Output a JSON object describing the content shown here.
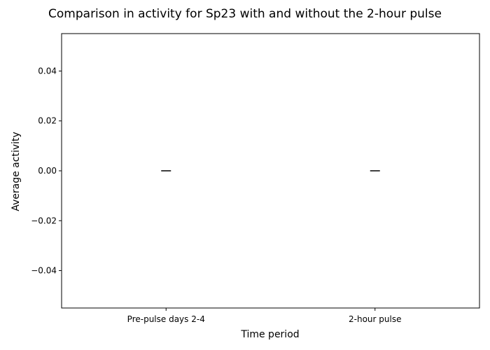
{
  "chart_data": {
    "type": "bar",
    "title": "Comparison in activity for Sp23 with and without the 2-hour pulse",
    "xlabel": "Time period",
    "ylabel": "Average activity",
    "categories": [
      "Pre-pulse days 2-4",
      "2-hour pulse"
    ],
    "values": [
      0.0,
      0.0
    ],
    "error_bars": [
      0.0,
      0.0
    ],
    "ylim": [
      -0.055,
      0.055
    ],
    "yticks": [
      -0.04,
      -0.02,
      0.0,
      0.02,
      0.04
    ],
    "ytick_labels": [
      "−0.04",
      "−0.02",
      "0.00",
      "0.02",
      "0.04"
    ],
    "grid": false,
    "colors": {
      "axis": "#000000",
      "errorbar": "#000000",
      "background": "#ffffff"
    }
  }
}
